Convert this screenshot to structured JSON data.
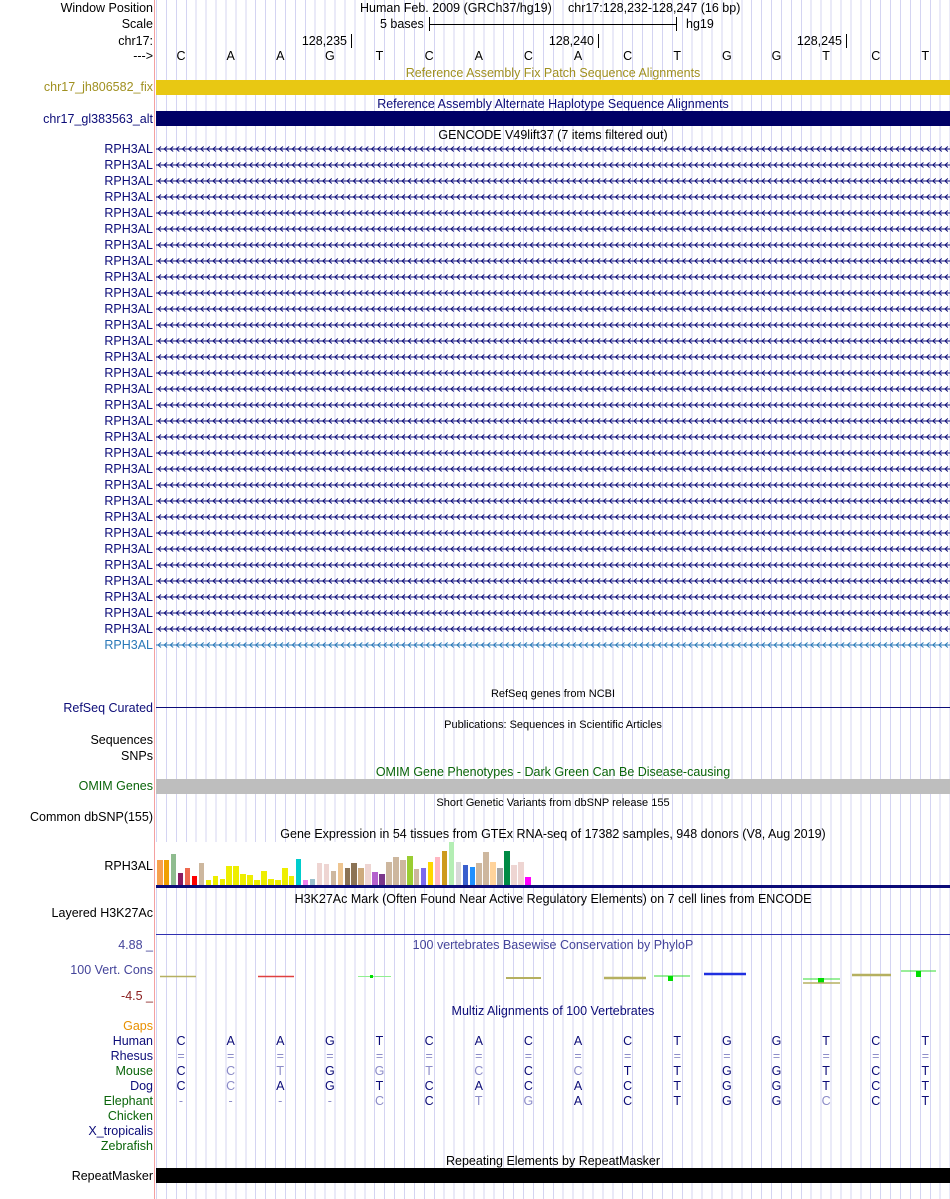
{
  "header": {
    "window_position_label": "Window Position",
    "assembly": "Human Feb. 2009 (GRCh37/hg19)",
    "position": "chr17:128,232-128,247 (16 bp)",
    "scale_label": "Scale",
    "scale_text": "5 bases",
    "scale_db": "hg19",
    "chrom_label": "chr17:",
    "strand_label": "--->",
    "ticks": [
      "128,235",
      "128,240",
      "128,245"
    ],
    "bases": [
      "C",
      "A",
      "A",
      "G",
      "T",
      "C",
      "A",
      "C",
      "A",
      "C",
      "T",
      "G",
      "G",
      "T",
      "C",
      "T"
    ]
  },
  "tracks": {
    "fix": {
      "title": "Reference Assembly Fix Patch Sequence Alignments",
      "label": "chr17_jh806582_fix",
      "color": "#e8c813"
    },
    "alt": {
      "title": "Reference Assembly Alternate Haplotype Sequence Alignments",
      "label": "chr17_gl383563_alt",
      "color": "#000066"
    },
    "gencode": {
      "title": "GENCODE V49lift37 (7 items filtered out)",
      "gene": "RPH3AL",
      "count": 32
    },
    "refseq": {
      "title": "RefSeq genes from NCBI",
      "label": "RefSeq Curated"
    },
    "pubs": {
      "title": "Publications: Sequences in Scientific Articles",
      "label1": "Sequences",
      "label2": "SNPs"
    },
    "omim": {
      "title": "OMIM Gene Phenotypes - Dark Green Can Be Disease-causing",
      "label": "OMIM Genes"
    },
    "dbsnp": {
      "title": "Short Genetic Variants from dbSNP release 155",
      "label": "Common dbSNP(155)"
    },
    "gtex": {
      "title": "Gene Expression in 54 tissues from GTEx RNA-seq of 17382 samples, 948 donors (V8, Aug 2019)",
      "label": "RPH3AL"
    },
    "h3k27ac": {
      "title": "H3K27Ac Mark (Often Found Near Active Regulatory Elements) on 7 cell lines from ENCODE",
      "label": "Layered H3K27Ac"
    },
    "phylop": {
      "title": "100 vertebrates Basewise Conservation by PhyloP",
      "label": "100 Vert. Cons",
      "max": "4.88 _",
      "min": "-4.5 _"
    },
    "multiz": {
      "title": "Multiz Alignments of 100 Vertebrates",
      "gaps_label": "Gaps",
      "species": [
        {
          "name": "Human",
          "bases": "CAAGTCACACTGGTCT",
          "mismatch": "0000000000000000",
          "color": "navy"
        },
        {
          "name": "Rhesus",
          "bases": "================",
          "mismatch": "1111111111111111",
          "color": "navy"
        },
        {
          "name": "Mouse",
          "bases": "CCTGGTCCCTTGGTCT",
          "mismatch": "0110111010000000",
          "color": "green"
        },
        {
          "name": "Dog",
          "bases": "CCAGTCACACTGGTCT",
          "mismatch": "0100000000000000",
          "color": "navy"
        },
        {
          "name": "Elephant",
          "bases": "----CCTGACTGGCCT",
          "mismatch": "1111101100000100",
          "color": "green"
        },
        {
          "name": "Chicken",
          "bases": "",
          "mismatch": "",
          "color": "green"
        },
        {
          "name": "X_tropicalis",
          "bases": "",
          "mismatch": "",
          "color": "navy"
        },
        {
          "name": "Zebrafish",
          "bases": "",
          "mismatch": "",
          "color": "green"
        }
      ]
    },
    "repeatmasker": {
      "title": "Repeating Elements by RepeatMasker",
      "label": "RepeatMasker"
    }
  },
  "gtex_values": [
    25,
    25,
    31,
    12,
    17,
    9,
    22,
    5,
    9,
    6,
    19,
    19,
    11,
    10,
    5,
    14,
    6,
    5,
    17,
    9,
    26,
    5,
    6,
    22,
    21,
    14,
    22,
    17,
    22,
    17,
    21,
    13,
    11,
    23,
    28,
    25,
    29,
    16,
    17,
    23,
    28,
    34,
    43,
    23,
    20,
    18,
    22,
    33,
    23,
    17,
    34,
    20,
    23,
    8
  ],
  "gtex_colors": [
    "#f6a04d",
    "#f0a000",
    "#8fbc8f",
    "#8b1c62",
    "#ee6a50",
    "#ff0000",
    "#cdb79e",
    "#eeee00",
    "#eeee00",
    "#eeee00",
    "#eeee00",
    "#eeee00",
    "#eeee00",
    "#eeee00",
    "#eeee00",
    "#eeee00",
    "#eeee00",
    "#eeee00",
    "#eeee00",
    "#eeee00",
    "#00cdcd",
    "#ee82ee",
    "#9ac0cd",
    "#eed5d2",
    "#eed5d2",
    "#cdb79e",
    "#eec591",
    "#8b7355",
    "#8b7355",
    "#cdaa7d",
    "#eed5d2",
    "#b460cd",
    "#7a378b",
    "#cdb79e",
    "#cdb79e",
    "#cdb79e",
    "#9acd32",
    "#cdb79e",
    "#7b68ee",
    "#ffd700",
    "#ffb6c1",
    "#cd9b1d",
    "#b4eeb4",
    "#d9d9d9",
    "#3a5fcd",
    "#1e90ff",
    "#cdb79e",
    "#cdb79e",
    "#ffd39b",
    "#a6a6a6",
    "#008b45",
    "#eed5d2",
    "#eed5d2",
    "#ff00ff"
  ]
}
